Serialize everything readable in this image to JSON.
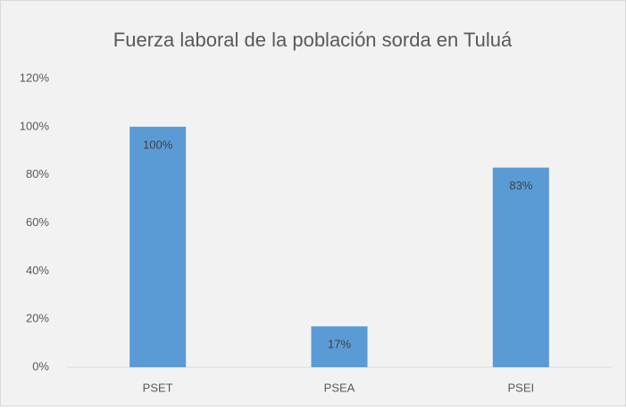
{
  "chart_data": {
    "type": "bar",
    "title": "Fuerza laboral de la población sorda en Tuluá",
    "categories": [
      "PSET",
      "PSEA",
      "PSEI"
    ],
    "values": [
      100,
      17,
      83
    ],
    "value_labels": [
      "100%",
      "17%",
      "83%"
    ],
    "color": "#5b9bd5",
    "ylim": [
      0,
      120
    ],
    "yticks": [
      {
        "value": 0,
        "label": "0%"
      },
      {
        "value": 20,
        "label": "20%"
      },
      {
        "value": 40,
        "label": "40%"
      },
      {
        "value": 60,
        "label": "60%"
      },
      {
        "value": 80,
        "label": "80%"
      },
      {
        "value": 100,
        "label": "100%"
      },
      {
        "value": 120,
        "label": "120%"
      }
    ],
    "grid": false
  }
}
